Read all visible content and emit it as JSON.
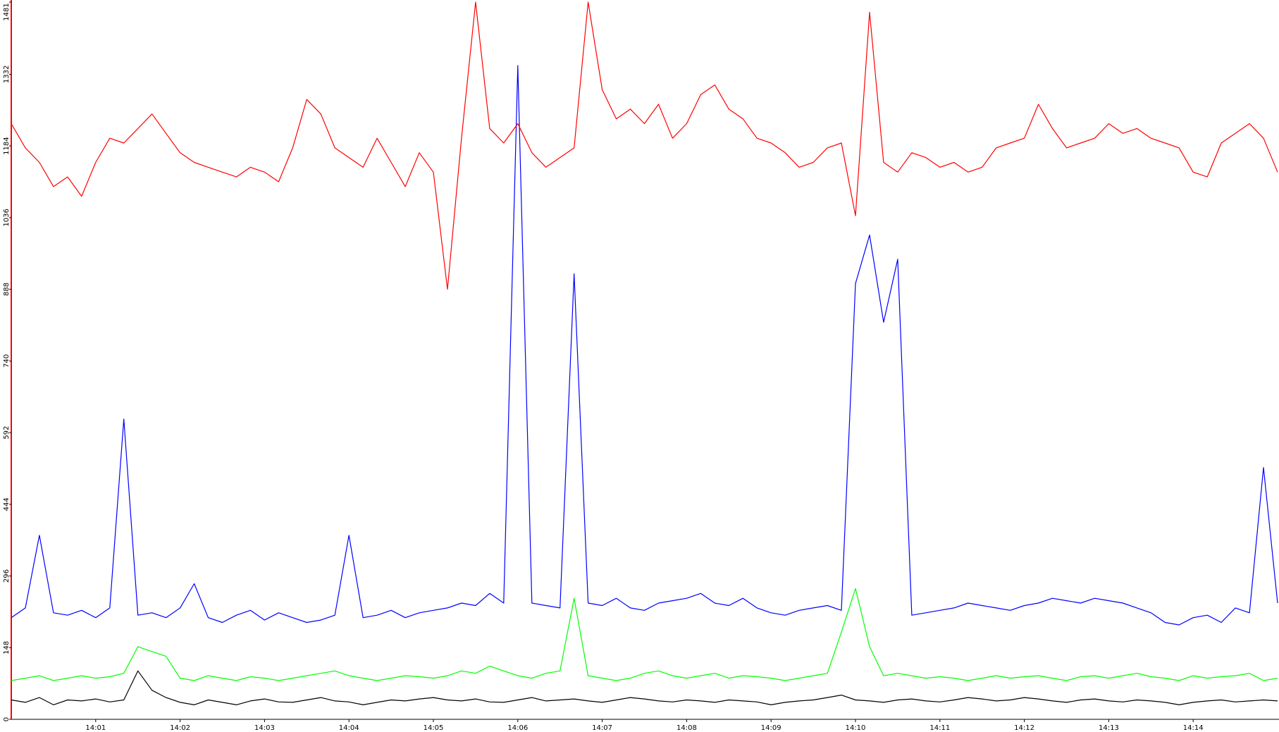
{
  "chart_data": {
    "type": "line",
    "categories": [
      null,
      null,
      null,
      null,
      null,
      null,
      "14:01",
      null,
      null,
      null,
      null,
      null,
      "14:02",
      null,
      null,
      null,
      null,
      null,
      "14:03",
      null,
      null,
      null,
      null,
      null,
      "14:04",
      null,
      null,
      null,
      null,
      null,
      "14:05",
      null,
      null,
      null,
      null,
      null,
      "14:06",
      null,
      null,
      null,
      null,
      null,
      "14:07",
      null,
      null,
      null,
      null,
      null,
      "14:08",
      null,
      null,
      null,
      null,
      null,
      "14:09",
      null,
      null,
      null,
      null,
      null,
      "14:10",
      null,
      null,
      null,
      null,
      null,
      "14:11",
      null,
      null,
      null,
      null,
      null,
      "14:12",
      null,
      null,
      null,
      null,
      null,
      "14:13",
      null,
      null,
      null,
      null,
      null,
      "14:14",
      null,
      null,
      null,
      null,
      null,
      null
    ],
    "series": [
      {
        "color": "#ff0000",
        "values": [
          1230,
          1180,
          1150,
          1100,
          1120,
          1080,
          1150,
          1200,
          1190,
          1220,
          1250,
          1210,
          1170,
          1150,
          1140,
          1130,
          1120,
          1140,
          1130,
          1110,
          1180,
          1280,
          1250,
          1180,
          1160,
          1140,
          1200,
          1150,
          1100,
          1170,
          1130,
          888,
          1200,
          1481,
          1220,
          1190,
          1230,
          1170,
          1140,
          1160,
          1180,
          1481,
          1300,
          1240,
          1260,
          1230,
          1270,
          1200,
          1230,
          1290,
          1310,
          1260,
          1240,
          1200,
          1190,
          1170,
          1140,
          1150,
          1180,
          1190,
          1040,
          1460,
          1150,
          1130,
          1170,
          1160,
          1140,
          1150,
          1130,
          1140,
          1180,
          1190,
          1200,
          1270,
          1220,
          1180,
          1190,
          1200,
          1230,
          1210,
          1220,
          1200,
          1190,
          1180,
          1130,
          1120,
          1190,
          1210,
          1230,
          1200,
          1130
        ]
      },
      {
        "color": "#0000ff",
        "values": [
          210,
          230,
          380,
          220,
          215,
          225,
          210,
          230,
          620,
          215,
          220,
          210,
          230,
          280,
          210,
          200,
          215,
          225,
          205,
          220,
          210,
          200,
          205,
          215,
          380,
          210,
          215,
          225,
          210,
          220,
          225,
          230,
          240,
          235,
          260,
          240,
          1350,
          240,
          235,
          230,
          920,
          240,
          235,
          250,
          230,
          225,
          240,
          245,
          250,
          260,
          240,
          235,
          250,
          230,
          220,
          215,
          225,
          230,
          235,
          225,
          900,
          1000,
          820,
          950,
          215,
          220,
          225,
          230,
          240,
          235,
          230,
          225,
          235,
          240,
          250,
          245,
          240,
          250,
          245,
          240,
          230,
          220,
          200,
          195,
          210,
          215,
          200,
          230,
          220,
          520,
          240
        ]
      },
      {
        "color": "#00ff00",
        "values": [
          80,
          85,
          90,
          80,
          85,
          90,
          85,
          88,
          95,
          150,
          140,
          130,
          85,
          80,
          90,
          85,
          80,
          88,
          85,
          80,
          85,
          90,
          95,
          100,
          90,
          85,
          80,
          85,
          90,
          88,
          85,
          90,
          100,
          95,
          110,
          100,
          90,
          85,
          95,
          100,
          250,
          90,
          85,
          80,
          85,
          95,
          100,
          90,
          85,
          90,
          95,
          85,
          90,
          88,
          85,
          80,
          85,
          90,
          95,
          180,
          270,
          150,
          90,
          95,
          90,
          85,
          88,
          85,
          80,
          85,
          90,
          85,
          88,
          90,
          85,
          80,
          88,
          90,
          85,
          90,
          95,
          88,
          85,
          80,
          90,
          85,
          88,
          90,
          95,
          80,
          85
        ]
      },
      {
        "color": "#000000",
        "values": [
          40,
          35,
          45,
          30,
          40,
          38,
          42,
          36,
          40,
          100,
          60,
          45,
          35,
          30,
          40,
          35,
          30,
          38,
          42,
          36,
          35,
          40,
          45,
          38,
          36,
          30,
          35,
          40,
          38,
          42,
          45,
          40,
          38,
          42,
          36,
          35,
          40,
          45,
          38,
          40,
          42,
          38,
          35,
          40,
          45,
          42,
          38,
          36,
          40,
          38,
          35,
          40,
          38,
          36,
          30,
          35,
          38,
          40,
          45,
          50,
          40,
          38,
          35,
          40,
          42,
          38,
          36,
          40,
          45,
          42,
          38,
          40,
          45,
          42,
          38,
          35,
          40,
          42,
          38,
          36,
          40,
          38,
          35,
          30,
          35,
          38,
          40,
          36,
          38,
          40,
          38
        ]
      }
    ],
    "ylim": [
      0,
      1481
    ],
    "yticks": [
      0,
      148,
      296,
      444,
      592,
      740,
      888,
      1036,
      1184,
      1332,
      1481
    ]
  }
}
